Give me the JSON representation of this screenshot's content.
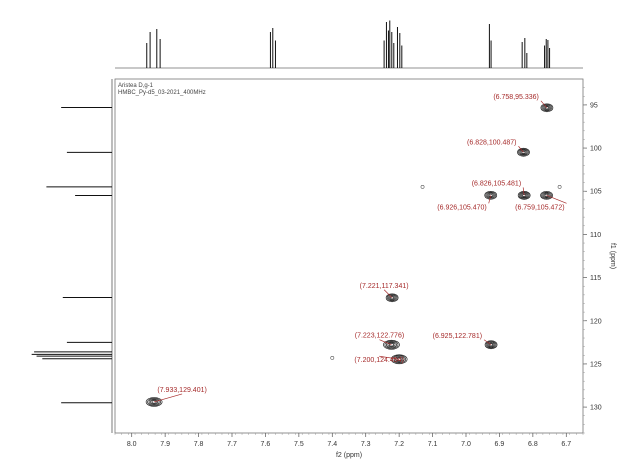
{
  "chart_data": {
    "type": "scatter",
    "experiment": [
      "Aristea D,g-1",
      "HMBC_Py-d5_03-2021_400MHz"
    ],
    "xlabel": "f2 (ppm)",
    "ylabel": "f1 (ppm)",
    "xlim": [
      8.05,
      6.65
    ],
    "ylim": [
      92,
      133
    ],
    "x_ticks": [
      8.0,
      7.9,
      7.8,
      7.7,
      7.6,
      7.5,
      7.4,
      7.3,
      7.2,
      7.1,
      7.0,
      6.9,
      6.8,
      6.7
    ],
    "x_tick_labels": [
      "8.0",
      "7.9",
      "7.8",
      "7.7",
      "7.6",
      "7.5",
      "7.4",
      "7.3",
      "7.2",
      "7.1",
      "7.0",
      "6.9",
      "6.8",
      "6.7"
    ],
    "y_ticks": [
      95,
      100,
      105,
      110,
      115,
      120,
      125,
      130
    ],
    "y_tick_labels": [
      "95",
      "100",
      "105",
      "110",
      "115",
      "120",
      "125",
      "130"
    ],
    "grid": false,
    "label_color": "#a52a2a",
    "contour_color": "#222222",
    "peaks": [
      {
        "x": 6.758,
        "y": 95.336,
        "label": "(6.758,95.336)"
      },
      {
        "x": 6.828,
        "y": 100.487,
        "label": "(6.828,100.487)"
      },
      {
        "x": 6.826,
        "y": 105.481,
        "label": "(6.826,105.481)"
      },
      {
        "x": 6.926,
        "y": 105.47,
        "label": "(6.926,105.470)"
      },
      {
        "x": 6.759,
        "y": 105.472,
        "label": "(6.759,105.472)"
      },
      {
        "x": 7.221,
        "y": 117.341,
        "label": "(7.221,117.341)"
      },
      {
        "x": 7.223,
        "y": 122.776,
        "label": "(7.223,122.776)"
      },
      {
        "x": 6.925,
        "y": 122.781,
        "label": "(6.925,122.781)"
      },
      {
        "x": 7.2,
        "y": 124.454,
        "label": "(7.200,124.454)"
      },
      {
        "x": 7.933,
        "y": 129.401,
        "label": "(7.933,129.401)"
      }
    ],
    "noise_points": [
      {
        "x": 7.13,
        "y": 104.5
      },
      {
        "x": 6.72,
        "y": 104.5
      },
      {
        "x": 7.4,
        "y": 124.3
      }
    ],
    "proj_top": [
      {
        "x": 7.955,
        "h": 0.5
      },
      {
        "x": 7.945,
        "h": 0.72
      },
      {
        "x": 7.925,
        "h": 0.78
      },
      {
        "x": 7.915,
        "h": 0.58
      },
      {
        "x": 7.585,
        "h": 0.72
      },
      {
        "x": 7.578,
        "h": 0.8
      },
      {
        "x": 7.57,
        "h": 0.55
      },
      {
        "x": 7.245,
        "h": 0.55
      },
      {
        "x": 7.238,
        "h": 0.92
      },
      {
        "x": 7.232,
        "h": 0.75
      },
      {
        "x": 7.228,
        "h": 0.95
      },
      {
        "x": 7.222,
        "h": 0.72
      },
      {
        "x": 7.216,
        "h": 0.5
      },
      {
        "x": 7.205,
        "h": 0.82
      },
      {
        "x": 7.198,
        "h": 0.7
      },
      {
        "x": 7.192,
        "h": 0.45
      },
      {
        "x": 6.93,
        "h": 0.88
      },
      {
        "x": 6.925,
        "h": 0.55
      },
      {
        "x": 6.832,
        "h": 0.52
      },
      {
        "x": 6.824,
        "h": 0.6
      },
      {
        "x": 6.818,
        "h": 0.3
      },
      {
        "x": 6.765,
        "h": 0.45
      },
      {
        "x": 6.76,
        "h": 0.58
      },
      {
        "x": 6.755,
        "h": 0.56
      },
      {
        "x": 6.75,
        "h": 0.4
      }
    ],
    "proj_left": [
      {
        "y": 95.3,
        "w": 0.62
      },
      {
        "y": 100.5,
        "w": 0.55
      },
      {
        "y": 104.5,
        "w": 0.8
      },
      {
        "y": 105.5,
        "w": 0.45
      },
      {
        "y": 117.3,
        "w": 0.6
      },
      {
        "y": 122.5,
        "w": 0.55
      },
      {
        "y": 123.6,
        "w": 0.95
      },
      {
        "y": 123.9,
        "w": 0.98
      },
      {
        "y": 124.1,
        "w": 0.92
      },
      {
        "y": 124.4,
        "w": 0.85
      },
      {
        "y": 129.5,
        "w": 0.62
      }
    ]
  }
}
